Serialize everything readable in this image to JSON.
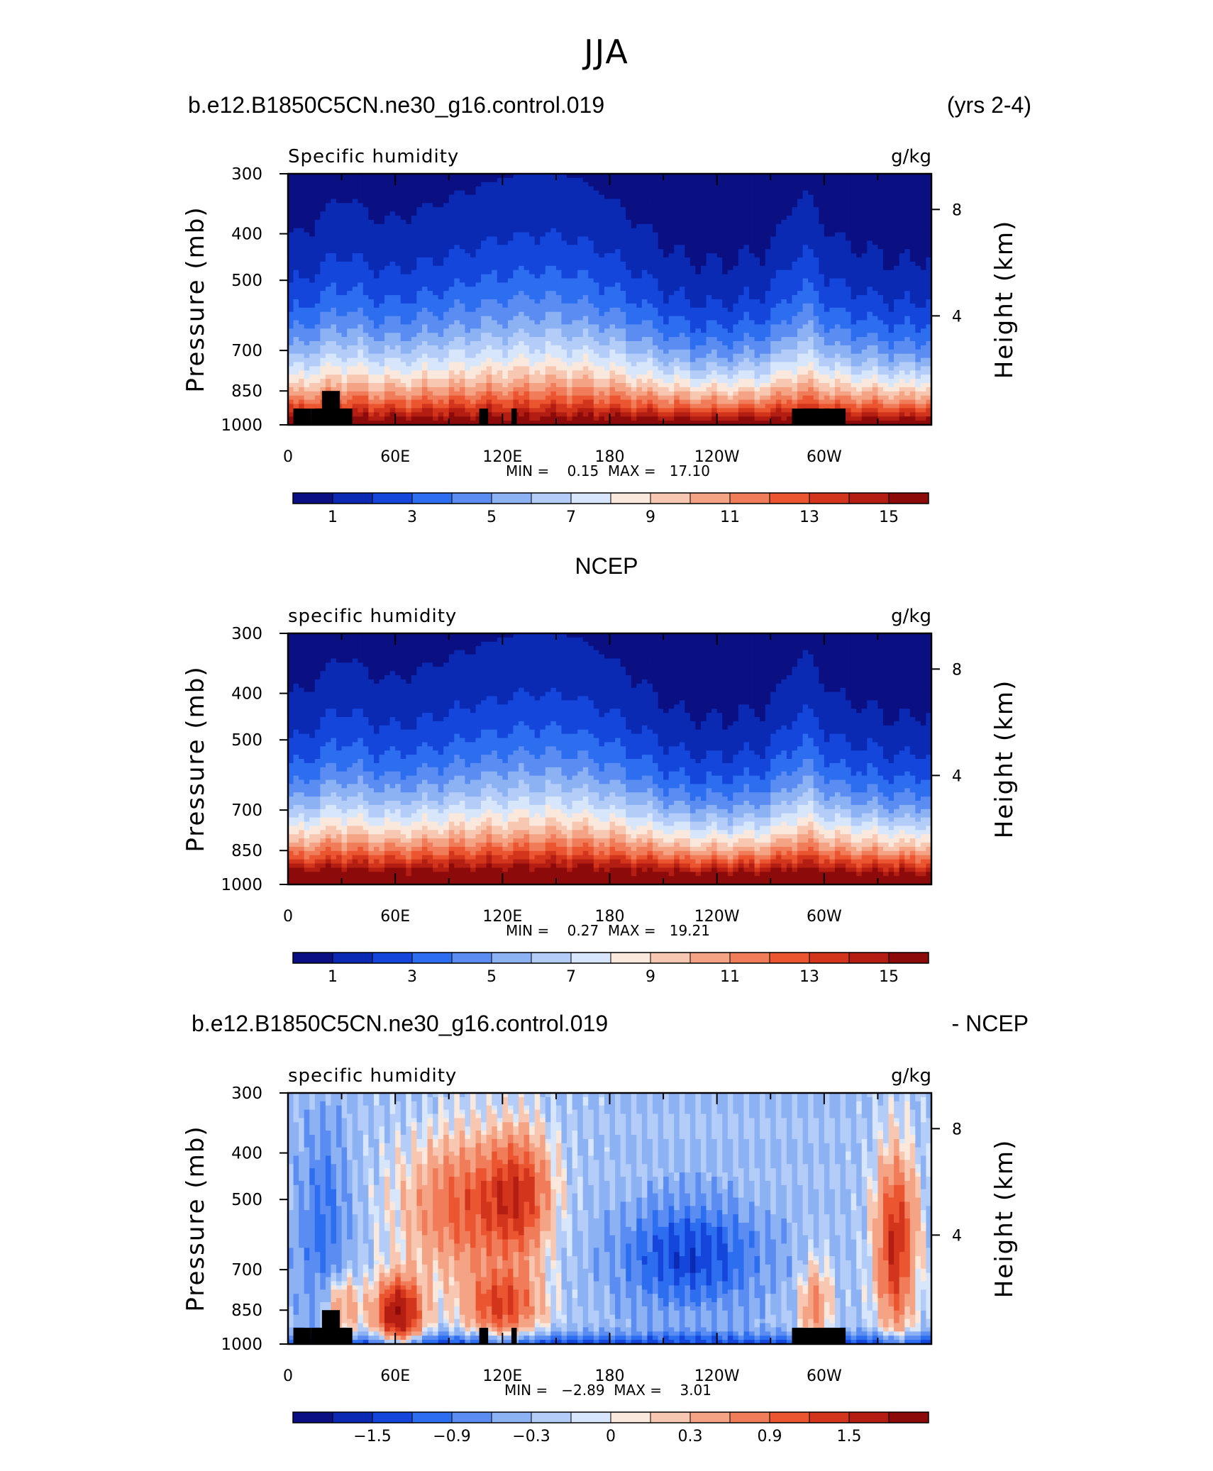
{
  "page": {
    "title": "JJA",
    "header_left": "b.e12.B1850C5CN.ne30_g16.control.019",
    "header_right": "(yrs 2-4)",
    "panel2_title": "NCEP",
    "panel3_header_left": "b.e12.B1850C5CN.ne30_g16.control.019",
    "panel3_header_right": "- NCEP"
  },
  "colors": {
    "terrain": "#000000",
    "seq_palette": [
      "#0a0f82",
      "#0a2ab4",
      "#1546dc",
      "#2d6ef0",
      "#5a8cf2",
      "#8cb2f4",
      "#b4cdf8",
      "#d8e6fb",
      "#fbe8dc",
      "#f8c7b1",
      "#f5a385",
      "#f07c5a",
      "#eb5530",
      "#d2341c",
      "#b41e12",
      "#8c0a0a"
    ],
    "diff_palette": [
      "#0a0f82",
      "#0a2ab4",
      "#1546dc",
      "#2d6ef0",
      "#5a8cf2",
      "#8cb2f4",
      "#b4cdf8",
      "#d8e6fb",
      "#fbe8dc",
      "#f8c7b1",
      "#f5a385",
      "#f07c5a",
      "#eb5530",
      "#d2341c",
      "#b41e12",
      "#8c0a0a"
    ]
  },
  "chart_data": [
    {
      "type": "heatmap",
      "subtitle_left": "Specific humidity",
      "units": "g/kg",
      "ylabel": "Pressure (mb)",
      "ylabel_right": "Height (km)",
      "x_ticks": [
        "0",
        "60E",
        "120E",
        "180",
        "120W",
        "60W"
      ],
      "y_ticks": [
        "300",
        "400",
        "500",
        "700",
        "850",
        "1000"
      ],
      "y_right_ticks": [
        "8",
        "4"
      ],
      "stats": "MIN =    0.15  MAX =   17.10",
      "min": 0.15,
      "max": 17.1,
      "colorbar_labels": [
        "1",
        "3",
        "5",
        "7",
        "9",
        "11",
        "13",
        "15"
      ],
      "field": "model"
    },
    {
      "type": "heatmap",
      "subtitle_left": "specific humidity",
      "units": "g/kg",
      "ylabel": "Pressure (mb)",
      "ylabel_right": "Height (km)",
      "x_ticks": [
        "0",
        "60E",
        "120E",
        "180",
        "120W",
        "60W"
      ],
      "y_ticks": [
        "300",
        "400",
        "500",
        "700",
        "850",
        "1000"
      ],
      "y_right_ticks": [
        "8",
        "4"
      ],
      "stats": "MIN =    0.27  MAX =   19.21",
      "min": 0.27,
      "max": 19.21,
      "colorbar_labels": [
        "1",
        "3",
        "5",
        "7",
        "9",
        "11",
        "13",
        "15"
      ],
      "field": "ncep"
    },
    {
      "type": "heatmap",
      "subtitle_left": "specific humidity",
      "units": "g/kg",
      "ylabel": "Pressure (mb)",
      "ylabel_right": "Height (km)",
      "x_ticks": [
        "0",
        "60E",
        "120E",
        "180",
        "120W",
        "60W"
      ],
      "y_ticks": [
        "300",
        "400",
        "500",
        "700",
        "850",
        "1000"
      ],
      "y_right_ticks": [
        "8",
        "4"
      ],
      "stats": "MIN =   −2.89  MAX =    3.01",
      "min": -2.89,
      "max": 3.01,
      "colorbar_labels": [
        "−1.5",
        "−0.9",
        "−0.3",
        "0",
        "0.3",
        "0.9",
        "1.5"
      ],
      "field": "diff"
    }
  ]
}
